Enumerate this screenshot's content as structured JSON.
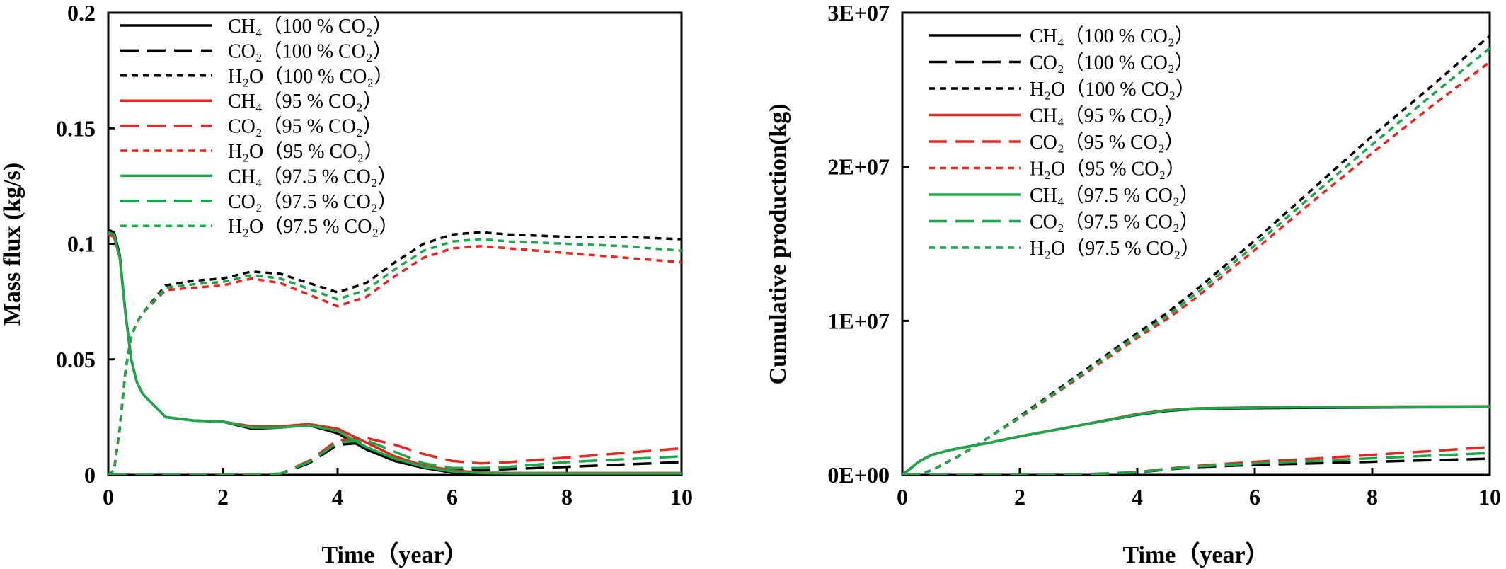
{
  "chart_data": [
    {
      "type": "line",
      "xlabel": "Time（year）",
      "ylabel": "Mass flux (kg/s)",
      "xlim": [
        0,
        10
      ],
      "ylim": [
        0,
        0.2
      ],
      "x_ticks": [
        "0",
        "2",
        "4",
        "6",
        "8",
        "10"
      ],
      "y_ticks": [
        "0",
        "0.05",
        "0.1",
        "0.15",
        "0.2"
      ],
      "grid": false,
      "legend_position": "top-left",
      "x": [
        0,
        0.1,
        0.2,
        0.3,
        0.4,
        0.5,
        0.6,
        0.8,
        1.0,
        1.5,
        2.0,
        2.5,
        3.0,
        3.5,
        4.0,
        4.5,
        5.0,
        5.5,
        6.0,
        6.5,
        7.0,
        8.0,
        9.0,
        10.0
      ],
      "series": [
        {
          "name": "CH₄（100 % CO₂）",
          "color": "#000000",
          "dash": "solid",
          "values": [
            0.106,
            0.105,
            0.095,
            0.07,
            0.05,
            0.04,
            0.035,
            0.03,
            0.025,
            0.0235,
            0.023,
            0.02,
            0.0205,
            0.0215,
            0.018,
            0.011,
            0.006,
            0.003,
            0.001,
            0.0005,
            0.0005,
            0.0005,
            0.0005,
            0.0005
          ]
        },
        {
          "name": "CO₂（100 % CO₂）",
          "color": "#000000",
          "dash": "long",
          "values": [
            0,
            0,
            0,
            0,
            0,
            0,
            0,
            0,
            0,
            0,
            0,
            0,
            0.0005,
            0.005,
            0.013,
            0.014,
            0.008,
            0.003,
            0.002,
            0.002,
            0.0025,
            0.0035,
            0.0045,
            0.0055
          ]
        },
        {
          "name": "H₂O（100 % CO₂）",
          "color": "#000000",
          "dash": "short",
          "values": [
            0,
            0.002,
            0.02,
            0.045,
            0.06,
            0.066,
            0.07,
            0.076,
            0.082,
            0.084,
            0.085,
            0.088,
            0.087,
            0.083,
            0.079,
            0.083,
            0.092,
            0.1,
            0.104,
            0.105,
            0.104,
            0.103,
            0.103,
            0.102
          ]
        },
        {
          "name": "CH₄（95 % CO₂）",
          "color": "#e8251f",
          "dash": "solid",
          "values": [
            0.104,
            0.103,
            0.094,
            0.07,
            0.05,
            0.04,
            0.035,
            0.03,
            0.025,
            0.0235,
            0.023,
            0.021,
            0.021,
            0.022,
            0.02,
            0.014,
            0.008,
            0.004,
            0.002,
            0.001,
            0.0008,
            0.0008,
            0.0008,
            0.0008
          ]
        },
        {
          "name": "CO₂（95 % CO₂）",
          "color": "#e8251f",
          "dash": "long",
          "values": [
            0,
            0,
            0,
            0,
            0,
            0,
            0,
            0,
            0,
            0,
            0,
            0,
            0.0005,
            0.006,
            0.015,
            0.016,
            0.013,
            0.009,
            0.006,
            0.005,
            0.0055,
            0.0075,
            0.0095,
            0.0115
          ]
        },
        {
          "name": "H₂O（95 % CO₂）",
          "color": "#e8251f",
          "dash": "short",
          "values": [
            0,
            0.002,
            0.02,
            0.045,
            0.06,
            0.066,
            0.07,
            0.075,
            0.08,
            0.081,
            0.082,
            0.085,
            0.083,
            0.078,
            0.073,
            0.077,
            0.086,
            0.094,
            0.098,
            0.099,
            0.098,
            0.096,
            0.094,
            0.092
          ]
        },
        {
          "name": "CH₄（97.5 % CO₂）",
          "color": "#19a84a",
          "dash": "solid",
          "values": [
            0.105,
            0.104,
            0.094,
            0.07,
            0.05,
            0.04,
            0.035,
            0.03,
            0.025,
            0.0235,
            0.023,
            0.0205,
            0.0205,
            0.0215,
            0.019,
            0.012,
            0.007,
            0.0035,
            0.0015,
            0.0008,
            0.0006,
            0.0006,
            0.0006,
            0.0006
          ]
        },
        {
          "name": "CO₂（97.5 % CO₂）",
          "color": "#19a84a",
          "dash": "long",
          "values": [
            0,
            0,
            0,
            0,
            0,
            0,
            0,
            0,
            0,
            0,
            0,
            0,
            0.0005,
            0.0055,
            0.014,
            0.015,
            0.01,
            0.005,
            0.003,
            0.003,
            0.0035,
            0.0055,
            0.0068,
            0.008
          ]
        },
        {
          "name": "H₂O（97.5 % CO₂）",
          "color": "#19a84a",
          "dash": "short",
          "values": [
            0,
            0.002,
            0.02,
            0.045,
            0.06,
            0.066,
            0.07,
            0.0755,
            0.081,
            0.0825,
            0.0835,
            0.0865,
            0.085,
            0.0805,
            0.076,
            0.08,
            0.089,
            0.097,
            0.101,
            0.102,
            0.101,
            0.1,
            0.099,
            0.097
          ]
        }
      ]
    },
    {
      "type": "line",
      "xlabel": "Time（year）",
      "ylabel": "Cumulative production(kg)",
      "xlim": [
        0,
        10
      ],
      "ylim": [
        0,
        30000000
      ],
      "x_ticks": [
        "0",
        "2",
        "4",
        "6",
        "8",
        "10"
      ],
      "y_ticks": [
        "0E+00",
        "1E+07",
        "2E+07",
        "3E+07"
      ],
      "grid": false,
      "legend_position": "top-left",
      "x": [
        0,
        0.3,
        0.5,
        0.8,
        1.0,
        1.5,
        2.0,
        3.0,
        4.0,
        4.5,
        5.0,
        6.0,
        7.0,
        8.0,
        9.0,
        10.0
      ],
      "series": [
        {
          "name": "CH₄（100 % CO₂）",
          "color": "#000000",
          "dash": "solid",
          "values": [
            0,
            900000,
            1300000,
            1600000,
            1750000,
            2100000,
            2500000,
            3200000,
            3900000,
            4150000,
            4280000,
            4330000,
            4360000,
            4380000,
            4390000,
            4400000
          ]
        },
        {
          "name": "CO₂（100 % CO₂）",
          "color": "#000000",
          "dash": "long",
          "values": [
            0,
            0,
            0,
            0,
            0,
            0,
            0,
            20000,
            150000,
            350000,
            500000,
            650000,
            750000,
            850000,
            950000,
            1050000
          ]
        },
        {
          "name": "H₂O（100 % CO₂）",
          "color": "#000000",
          "dash": "short",
          "values": [
            0,
            50000,
            300000,
            900000,
            1300000,
            2500000,
            3800000,
            6500000,
            9200000,
            10500000,
            12000000,
            15200000,
            18600000,
            22000000,
            25200000,
            28500000
          ]
        },
        {
          "name": "CH₄（95 % CO₂）",
          "color": "#e8251f",
          "dash": "solid",
          "values": [
            0,
            900000,
            1300000,
            1600000,
            1750000,
            2100000,
            2500000,
            3200000,
            3950000,
            4200000,
            4320000,
            4380000,
            4410000,
            4430000,
            4440000,
            4450000
          ]
        },
        {
          "name": "CO₂（95 % CO₂）",
          "color": "#e8251f",
          "dash": "long",
          "values": [
            0,
            0,
            0,
            0,
            0,
            0,
            0,
            25000,
            180000,
            400000,
            580000,
            850000,
            1050000,
            1300000,
            1550000,
            1800000
          ]
        },
        {
          "name": "H₂O（95 % CO₂）",
          "color": "#e8251f",
          "dash": "short",
          "values": [
            0,
            50000,
            300000,
            900000,
            1300000,
            2500000,
            3700000,
            6300000,
            8900000,
            10100000,
            11500000,
            14600000,
            17800000,
            20900000,
            23900000,
            26800000
          ]
        },
        {
          "name": "CH₄（97.5 % CO₂）",
          "color": "#19a84a",
          "dash": "solid",
          "values": [
            0,
            900000,
            1300000,
            1600000,
            1750000,
            2100000,
            2500000,
            3200000,
            3920000,
            4180000,
            4300000,
            4360000,
            4390000,
            4410000,
            4420000,
            4430000
          ]
        },
        {
          "name": "CO₂（97.5 % CO₂）",
          "color": "#19a84a",
          "dash": "long",
          "values": [
            0,
            0,
            0,
            0,
            0,
            0,
            0,
            22000,
            160000,
            370000,
            540000,
            750000,
            900000,
            1080000,
            1250000,
            1420000
          ]
        },
        {
          "name": "H₂O（97.5 % CO₂）",
          "color": "#19a84a",
          "dash": "short",
          "values": [
            0,
            50000,
            300000,
            900000,
            1300000,
            2500000,
            3750000,
            6400000,
            9050000,
            10300000,
            11750000,
            14900000,
            18200000,
            21450000,
            24600000,
            27700000
          ]
        }
      ]
    }
  ]
}
